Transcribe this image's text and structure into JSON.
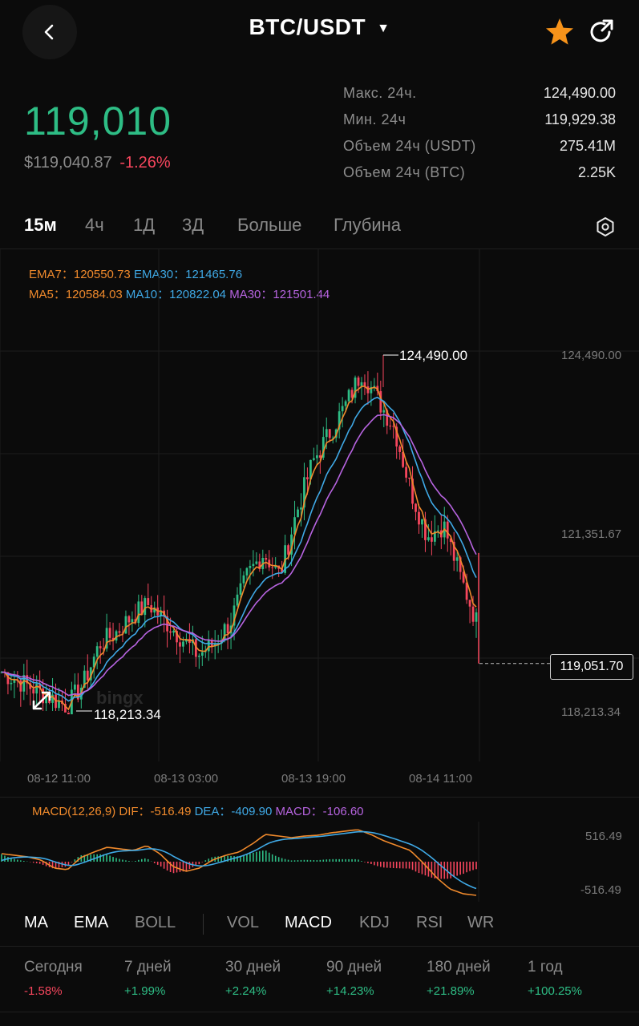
{
  "header": {
    "pair": "BTC/USDT",
    "back_icon": "chevron-left-icon",
    "favorite_icon": "star-icon",
    "share_icon": "share-icon",
    "favorite_color": "#f7931a"
  },
  "price": {
    "last": "119,010",
    "usd_value": "$119,040.87",
    "change_pct": "-1.26%"
  },
  "stats": [
    {
      "label": "Макс. 24ч.",
      "value": "124,490.00"
    },
    {
      "label": "Мин. 24ч",
      "value": "119,929.38"
    },
    {
      "label": "Объем 24ч (USDT)",
      "value": "275.41M"
    },
    {
      "label": "Объем 24ч (BTC)",
      "value": "2.25K"
    }
  ],
  "timeframes": [
    {
      "label": "15м",
      "active": true
    },
    {
      "label": "4ч",
      "active": false
    },
    {
      "label": "1Д",
      "active": false
    },
    {
      "label": "3Д",
      "active": false
    },
    {
      "label": "Больше",
      "active": false
    },
    {
      "label": "Глубина",
      "active": false
    }
  ],
  "indicators_top": {
    "ema7": "EMA7：120550.73",
    "ema30": "EMA30：121465.76",
    "ma5": "MA5：120584.03",
    "ma10": "MA10：120822.04",
    "ma30": "MA30：121501.44"
  },
  "chart": {
    "high_label": "124,490.00",
    "low_label": "118,213.34",
    "y_axis": [
      "124,490.00",
      "121,351.67",
      "118,213.34"
    ],
    "last_price_box": "119,051.70",
    "x_axis": [
      "08-12 11:00",
      "08-13 03:00",
      "08-13 19:00",
      "08-14 11:00"
    ],
    "watermark": "bingx"
  },
  "macd": {
    "label": "MACD(12,26,9)",
    "dif": "DIF：-516.49",
    "dea": "DEA：-409.90",
    "macd": "MACD：-106.60",
    "axis_top": "516.49",
    "axis_bottom": "-516.49"
  },
  "indicator_tabs": [
    {
      "label": "MA",
      "active": true
    },
    {
      "label": "EMA",
      "active": true
    },
    {
      "label": "BOLL",
      "active": false
    },
    {
      "label": "VOL",
      "active": false
    },
    {
      "label": "MACD",
      "active": true
    },
    {
      "label": "KDJ",
      "active": false
    },
    {
      "label": "RSI",
      "active": false
    },
    {
      "label": "WR",
      "active": false
    }
  ],
  "performance": [
    {
      "label": "Сегодня",
      "value": "-1.58%"
    },
    {
      "label": "7 дней",
      "value": "+1.99%"
    },
    {
      "label": "30 дней",
      "value": "+2.24%"
    },
    {
      "label": "90 дней",
      "value": "+14.23%"
    },
    {
      "label": "180 дней",
      "value": "+21.89%"
    },
    {
      "label": "1 год",
      "value": "+100.25%"
    }
  ],
  "colors": {
    "up": "#2ebd85",
    "down": "#f6465d",
    "ema7": "#f08a2c",
    "ema30": "#3fa9e6",
    "ma30": "#b764e0"
  },
  "chart_data": {
    "type": "candlestick",
    "approx_close_path": [
      118900,
      118750,
      118600,
      118450,
      118300,
      118700,
      119400,
      119600,
      119900,
      120100,
      119800,
      119500,
      119200,
      119400,
      119800,
      120600,
      121000,
      120600,
      121700,
      122600,
      123100,
      123600,
      124200,
      123700,
      123200,
      122100,
      121300,
      121500,
      120600,
      119800
    ],
    "high": 124490.0,
    "low": 118213.34,
    "last": 119051.7
  }
}
